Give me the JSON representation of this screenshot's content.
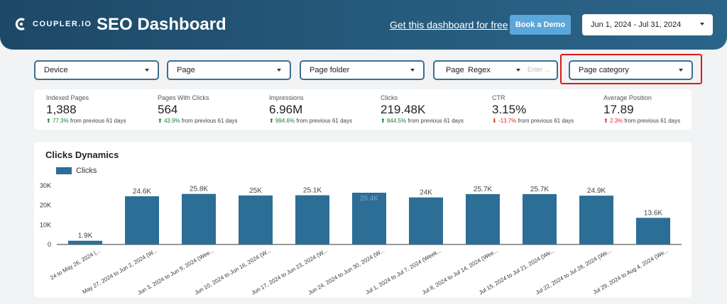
{
  "header": {
    "logo_text": "COUPLER.IO",
    "title": "SEO Dashboard",
    "cta_link": "Get this dashboard for free",
    "demo_button": "Book a Demo",
    "date_range": "Jun 1, 2024 - Jul 31, 2024"
  },
  "filters": {
    "device": "Device",
    "page": "Page",
    "page_folder": "Page folder",
    "page_regex_label": "Page",
    "page_regex_mode": "Regex",
    "page_regex_placeholder": "Enter ...",
    "page_category": "Page category"
  },
  "kpis": [
    {
      "label": "Indexed Pages",
      "value": "1,388",
      "arrow": "⬆",
      "delta": "77.3%",
      "delta_suffix": " from previous 61 days",
      "trend": "up"
    },
    {
      "label": "Pages With Clicks",
      "value": "564",
      "arrow": "⬆",
      "delta": "43.9%",
      "delta_suffix": " from previous 61 days",
      "trend": "up"
    },
    {
      "label": "Impressions",
      "value": "6.96M",
      "arrow": "⬆",
      "delta": "994.6%",
      "delta_suffix": " from previous 61 days",
      "trend": "up"
    },
    {
      "label": "Clicks",
      "value": "219.48K",
      "arrow": "⬆",
      "delta": "844.5%",
      "delta_suffix": " from previous 61 days",
      "trend": "up"
    },
    {
      "label": "CTR",
      "value": "3.15%",
      "arrow": "⬇",
      "delta": "-13.7%",
      "delta_suffix": " from previous 61 days",
      "trend": "down"
    },
    {
      "label": "Average Position",
      "value": "17.89",
      "arrow": "⬆",
      "delta": "2.3%",
      "delta_suffix": " from previous 61 days",
      "trend": "down"
    }
  ],
  "colors": {
    "bar": "#2c6e96",
    "header": "#1d4866",
    "accent": "#5ba6da",
    "highlight": "#e01919"
  },
  "chart_data": {
    "type": "bar",
    "title": "Clicks Dynamics",
    "categories": [
      "24 to May 26, 2024 (...",
      "May 27, 2024 to Jun 2, 2024 (W...",
      "Jun 3, 2024 to Jun 9, 2024 (Wee...",
      "Jun 10, 2024 to Jun 16, 2024 (W...",
      "Jun 17, 2024 to Jun 23, 2024 (W...",
      "Jun 24, 2024 to Jun 30, 2024 (W...",
      "Jul 1, 2024 to Jul 7, 2024 (Week...",
      "Jul 8, 2024 to Jul 14, 2024 (Wee...",
      "Jul 15, 2024 to Jul 21, 2024 (We...",
      "Jul 22, 2024 to Jul 28, 2024 (We...",
      "Jul 29, 2024 to Aug 4, 2024 (We..."
    ],
    "series": [
      {
        "name": "Clicks",
        "values": [
          1900,
          24600,
          25800,
          25000,
          25100,
          26400,
          24000,
          25700,
          25700,
          24900,
          13600
        ]
      }
    ],
    "data_labels": [
      "1.9K",
      "24.6K",
      "25.8K",
      "25K",
      "25.1K",
      "26.4K",
      "24K",
      "25.7K",
      "25.7K",
      "24.9K",
      "13.6K"
    ],
    "yticks": [
      "0",
      "10K",
      "20K",
      "30K"
    ],
    "ylim": [
      0,
      30000
    ],
    "legend": "top-left"
  }
}
